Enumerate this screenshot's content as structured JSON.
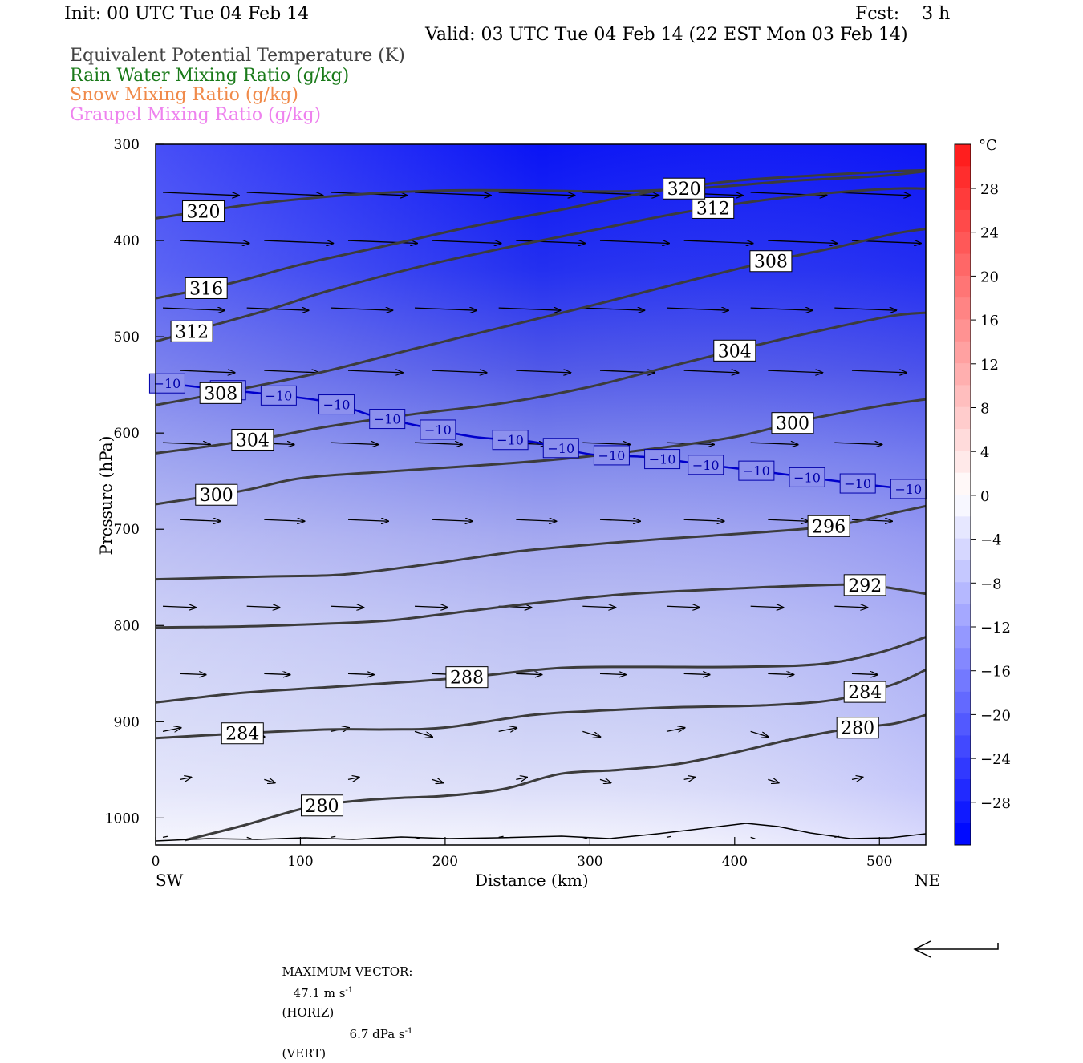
{
  "header": {
    "init": "Init: 00 UTC Tue 04 Feb 14",
    "fcst": "Fcst:    3 h",
    "valid": "Valid: 03 UTC Tue 04 Feb 14 (22 EST Mon 03 Feb 14)"
  },
  "legend_fields": [
    {
      "label": "Equivalent Potential Temperature (K)",
      "color": "#404040"
    },
    {
      "label": "Rain Water Mixing Ratio (g/kg)",
      "color": "#1a7a1a"
    },
    {
      "label": "Snow Mixing Ratio (g/kg)",
      "color": "#f08a4a"
    },
    {
      "label": "Graupel Mixing Ratio (g/kg)",
      "color": "#ee82ee"
    }
  ],
  "footer": {
    "max_vector_prefix": "MAXIMUM VECTOR:",
    "horiz": "47.1 m s",
    "horiz_tail": "(HORIZ)",
    "vert": "6.7 dPa s",
    "vert_tail": "(VERT)",
    "exp": "-1"
  },
  "colorbar": {
    "unit": "°C",
    "ticks": [
      "28",
      "24",
      "20",
      "16",
      "12",
      "8",
      "4",
      "0",
      "−4",
      "−8",
      "−12",
      "−16",
      "−20",
      "−24",
      "−28"
    ]
  },
  "chart_data": {
    "type": "heatmap",
    "xlabel": "Distance (km)",
    "ylabel": "Pressure (hPa)",
    "xlim": [
      0,
      532
    ],
    "ylim": [
      1028,
      300
    ],
    "x_ticks": [
      0,
      100,
      200,
      300,
      400,
      500
    ],
    "y_ticks": [
      300,
      400,
      500,
      600,
      700,
      800,
      900,
      1000
    ],
    "x_end_labels": {
      "left": "SW",
      "right": "NE"
    },
    "theta_e_contours": [
      {
        "value": 280,
        "points": [
          [
            20,
            1023
          ],
          [
            60,
            1008
          ],
          [
            105,
            989
          ],
          [
            140,
            982
          ],
          [
            170,
            979
          ],
          [
            200,
            977
          ],
          [
            240,
            970
          ],
          [
            280,
            954
          ],
          [
            320,
            950
          ],
          [
            360,
            944
          ],
          [
            400,
            932
          ],
          [
            440,
            918
          ],
          [
            480,
            907
          ],
          [
            510,
            902
          ],
          [
            532,
            893
          ]
        ]
      },
      {
        "value": 284,
        "points": [
          [
            0,
            917
          ],
          [
            60,
            912
          ],
          [
            120,
            908
          ],
          [
            160,
            908
          ],
          [
            200,
            906
          ],
          [
            260,
            893
          ],
          [
            300,
            889
          ],
          [
            360,
            885
          ],
          [
            420,
            883
          ],
          [
            470,
            877
          ],
          [
            510,
            861
          ],
          [
            532,
            846
          ]
        ]
      },
      {
        "value": 288,
        "points": [
          [
            0,
            880
          ],
          [
            60,
            870
          ],
          [
            120,
            864
          ],
          [
            180,
            858
          ],
          [
            220,
            853
          ],
          [
            280,
            844
          ],
          [
            340,
            843
          ],
          [
            400,
            843
          ],
          [
            460,
            840
          ],
          [
            500,
            828
          ],
          [
            532,
            812
          ]
        ]
      },
      {
        "value": 292,
        "points": [
          [
            0,
            802
          ],
          [
            60,
            801
          ],
          [
            120,
            798
          ],
          [
            160,
            795
          ],
          [
            200,
            788
          ],
          [
            260,
            777
          ],
          [
            320,
            768
          ],
          [
            380,
            763
          ],
          [
            440,
            759
          ],
          [
            490,
            758
          ],
          [
            532,
            767
          ]
        ]
      },
      {
        "value": 296,
        "points": [
          [
            0,
            752
          ],
          [
            80,
            749
          ],
          [
            130,
            747
          ],
          [
            190,
            736
          ],
          [
            250,
            723
          ],
          [
            300,
            716
          ],
          [
            350,
            710
          ],
          [
            420,
            703
          ],
          [
            470,
            696
          ],
          [
            510,
            683
          ],
          [
            532,
            676
          ]
        ]
      },
      {
        "value": 300,
        "points": [
          [
            0,
            674
          ],
          [
            60,
            660
          ],
          [
            100,
            647
          ],
          [
            160,
            640
          ],
          [
            220,
            634
          ],
          [
            280,
            627
          ],
          [
            340,
            617
          ],
          [
            400,
            604
          ],
          [
            450,
            586
          ],
          [
            500,
            572
          ],
          [
            532,
            565
          ]
        ]
      },
      {
        "value": 304,
        "points": [
          [
            0,
            621
          ],
          [
            40,
            613
          ],
          [
            80,
            604
          ],
          [
            120,
            593
          ],
          [
            180,
            580
          ],
          [
            240,
            569
          ],
          [
            300,
            552
          ],
          [
            360,
            529
          ],
          [
            420,
            507
          ],
          [
            470,
            490
          ],
          [
            510,
            478
          ],
          [
            532,
            475
          ]
        ]
      },
      {
        "value": 308,
        "points": [
          [
            0,
            571
          ],
          [
            40,
            560
          ],
          [
            80,
            548
          ],
          [
            120,
            535
          ],
          [
            180,
            512
          ],
          [
            240,
            490
          ],
          [
            300,
            468
          ],
          [
            360,
            445
          ],
          [
            420,
            423
          ],
          [
            470,
            407
          ],
          [
            510,
            393
          ],
          [
            532,
            388
          ]
        ]
      },
      {
        "value": 312,
        "points": [
          [
            0,
            505
          ],
          [
            40,
            488
          ],
          [
            80,
            471
          ],
          [
            120,
            452
          ],
          [
            180,
            428
          ],
          [
            240,
            408
          ],
          [
            300,
            390
          ],
          [
            360,
            372
          ],
          [
            420,
            358
          ],
          [
            470,
            350
          ],
          [
            510,
            346
          ],
          [
            532,
            346
          ]
        ]
      },
      {
        "value": 316,
        "points": [
          [
            0,
            460
          ],
          [
            50,
            445
          ],
          [
            100,
            425
          ],
          [
            160,
            405
          ],
          [
            220,
            385
          ],
          [
            280,
            368
          ],
          [
            340,
            350
          ],
          [
            400,
            338
          ],
          [
            460,
            332
          ],
          [
            510,
            328
          ],
          [
            532,
            327
          ]
        ]
      },
      {
        "value": 320,
        "points": [
          [
            0,
            377
          ],
          [
            40,
            368
          ],
          [
            80,
            360
          ],
          [
            140,
            352
          ],
          [
            200,
            348
          ],
          [
            260,
            348
          ],
          [
            320,
            349
          ],
          [
            380,
            345
          ],
          [
            440,
            338
          ],
          [
            500,
            333
          ],
          [
            532,
            328
          ]
        ]
      }
    ],
    "temperature_contour": {
      "value": -10,
      "points": [
        [
          0,
          547
        ],
        [
          40,
          554
        ],
        [
          80,
          560
        ],
        [
          120,
          568
        ],
        [
          150,
          582
        ],
        [
          180,
          592
        ],
        [
          220,
          604
        ],
        [
          260,
          609
        ],
        [
          300,
          622
        ],
        [
          340,
          625
        ],
        [
          380,
          633
        ],
        [
          420,
          640
        ],
        [
          460,
          648
        ],
        [
          500,
          655
        ],
        [
          532,
          660
        ]
      ]
    },
    "wind_max": {
      "horiz_m_s": 47.1,
      "vert_dPa_s": 6.7
    }
  }
}
